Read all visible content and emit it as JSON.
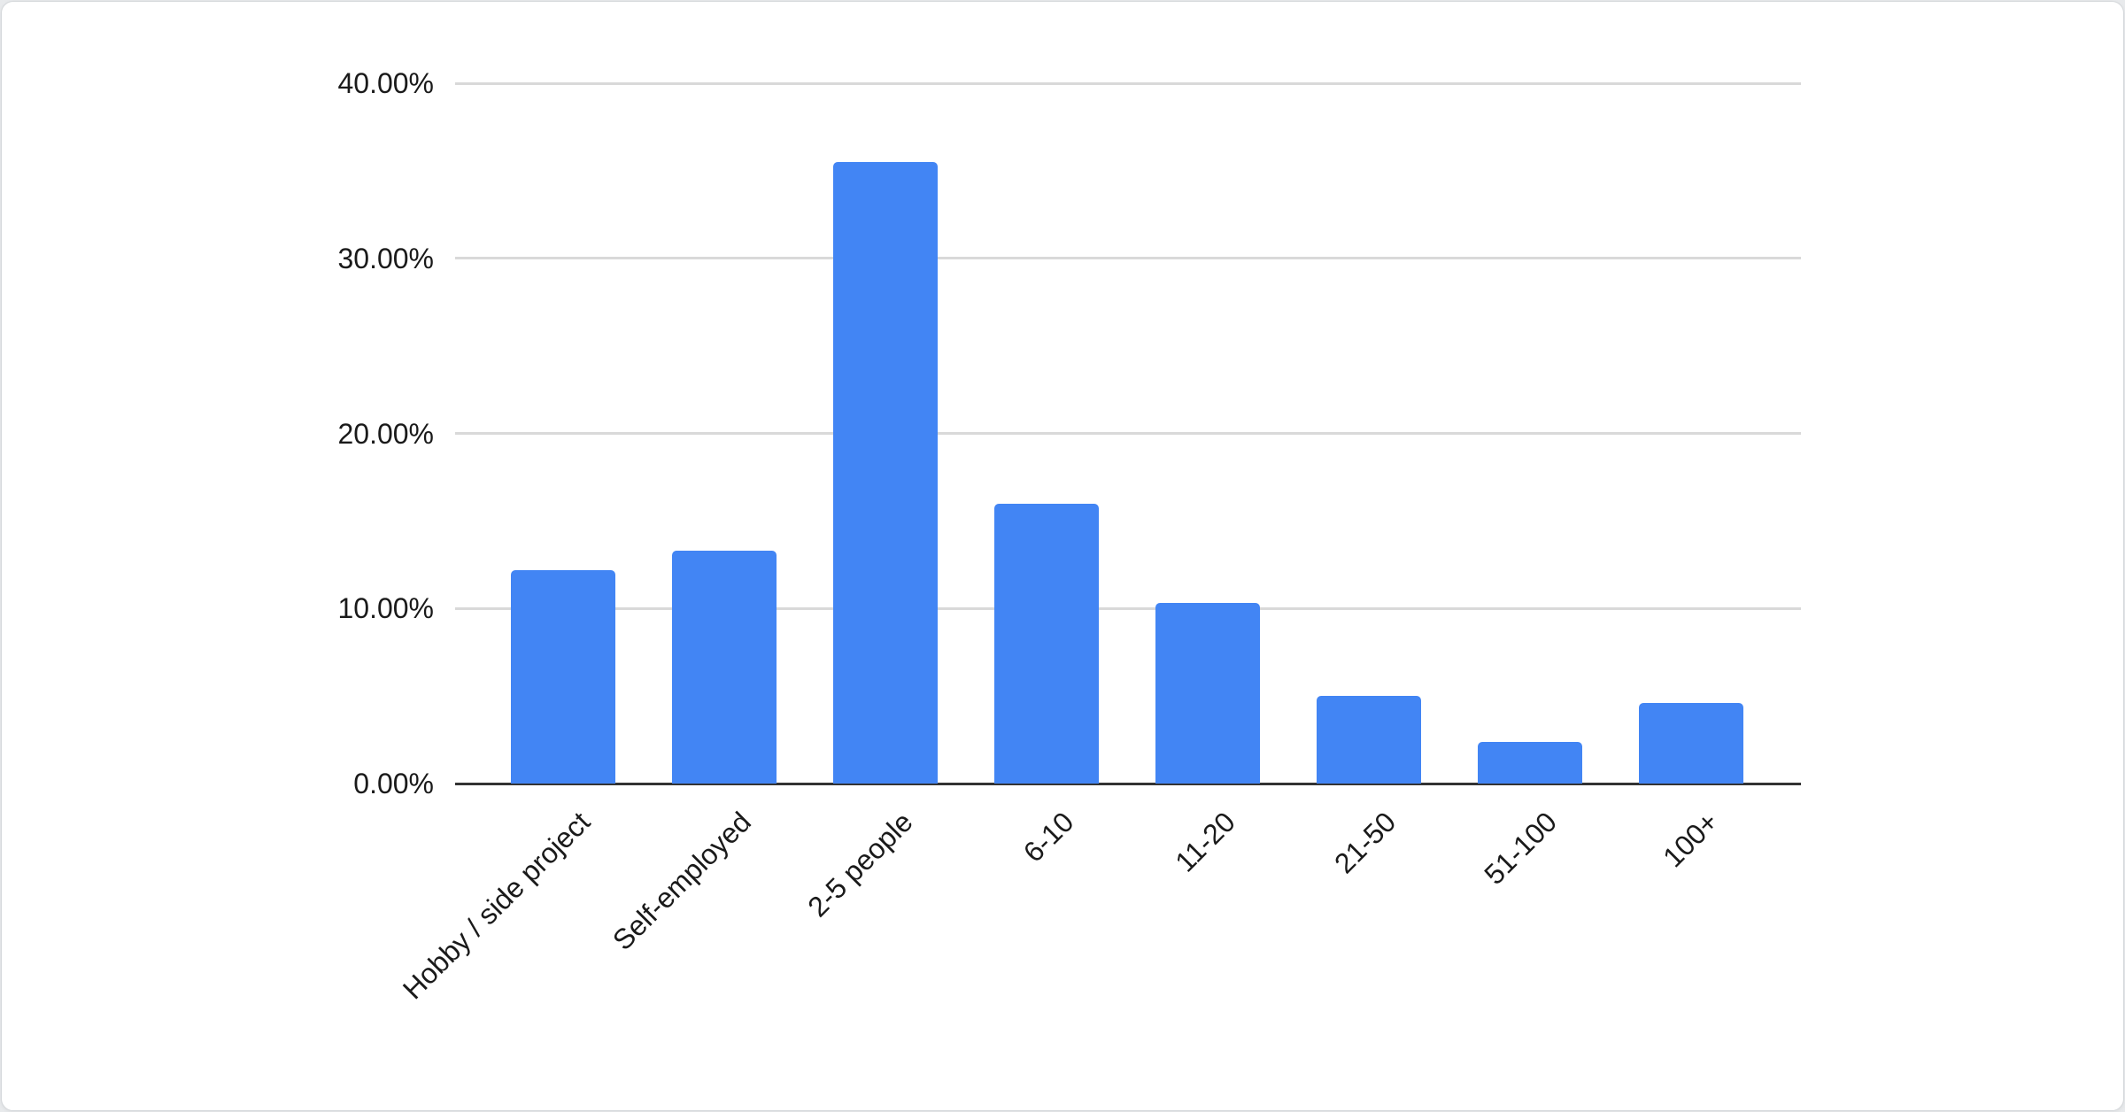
{
  "page": {
    "background_color": "#e8eaec"
  },
  "card": {
    "background_color": "#ffffff",
    "border_color": "#d5d8db"
  },
  "chart_data": {
    "type": "bar",
    "title": "",
    "xlabel": "",
    "ylabel": "",
    "categories": [
      "Hobby / side project",
      "Self-employed",
      "2-5 people",
      "6-10",
      "11-20",
      "21-50",
      "51-100",
      "100+"
    ],
    "values": [
      12.2,
      13.3,
      35.5,
      16.0,
      10.3,
      5.0,
      2.4,
      4.6
    ],
    "value_unit": "percent",
    "y_ticks": [
      {
        "value": 0,
        "label": "0.00%"
      },
      {
        "value": 10,
        "label": "10.00%"
      },
      {
        "value": 20,
        "label": "20.00%"
      },
      {
        "value": 30,
        "label": "30.00%"
      },
      {
        "value": 40,
        "label": "40.00%"
      }
    ],
    "ylim": [
      0,
      40
    ],
    "grid": "horizontal",
    "legend": "none",
    "x_label_rotation_deg": 45,
    "colors": {
      "bar": "#4285f4",
      "gridline": "#d9d9d9",
      "axis_line": "#333333",
      "label_text": "#1a1a1a"
    }
  }
}
